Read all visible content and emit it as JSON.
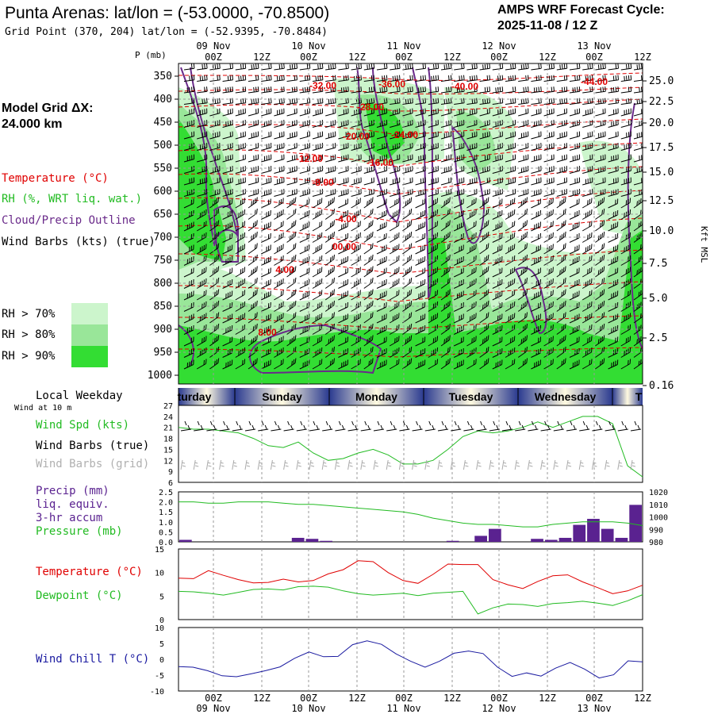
{
  "header": {
    "title": "Punta Arenas:  lat/lon = (-53.0000, -70.8500)",
    "subtitle": "Grid Point (370, 204) lat/lon = (-52.9395, -70.8484)",
    "cycle_line1": "AMPS WRF Forecast Cycle:",
    "cycle_line2": "2025-11-08 / 12  Z"
  },
  "left_panel": {
    "grid_label_1": "Model Grid ΔX:",
    "grid_label_2": " 24.000 km",
    "legend_temperature": "Temperature (°C)",
    "legend_rh": "RH (%, WRT liq. wat.)",
    "legend_cloud": "Cloud/Precip Outline",
    "legend_wind": "Wind Barbs (kts) (true)",
    "rh_gt70": "RH > 70%",
    "rh_gt80": "RH > 80%",
    "rh_gt90": "RH > 90%",
    "local_weekday": "Local Weekday",
    "wind_at_10m": "Wind at 10 m",
    "wind_spd": "Wind Spd (kts)",
    "wind_barbs_true": "Wind Barbs (true)",
    "wind_barbs_grid": "Wind Barbs (grid)",
    "precip": "Precip (mm)",
    "liq_equiv": "liq. equiv.",
    "accum": "3-hr accum",
    "pressure": "Pressure (mb)",
    "temperature2": "Temperature (°C)",
    "dewpoint": "Dewpoint (°C)",
    "wind_chill": "Wind Chill T (°C)"
  },
  "colors": {
    "temperature": "#e00000",
    "rh": "#22bb22",
    "cloud": "#6a2a8a",
    "wind": "#000000",
    "grid_barbs": "#aaaaaa",
    "precip": "#5a2290",
    "windchill": "#1a1aa0",
    "rh70": "#ccf5cc",
    "rh80": "#99e699",
    "rh90": "#33dd33"
  },
  "chart_data": [
    {
      "type": "heatmap",
      "name_hint": "time-pressure cross section",
      "ylabel": "P (mb)",
      "ylabel_right": "Kft MSL",
      "y_ticks": [
        350,
        400,
        450,
        500,
        550,
        600,
        650,
        700,
        750,
        800,
        850,
        900,
        950,
        1000
      ],
      "y_right_ticks": [
        "25.0",
        "22.5",
        "20.0",
        "17.5",
        "15.0",
        "12.5",
        "10.0",
        "7.5",
        "5.0",
        "2.5",
        "0.16"
      ],
      "x_ticks_top": [
        "00Z",
        "12Z",
        "00Z",
        "12Z",
        "00Z",
        "12Z",
        "00Z",
        "12Z",
        "00Z",
        "12Z"
      ],
      "x_dates_top": [
        "09 Nov",
        "10 Nov",
        "11 Nov",
        "12 Nov",
        "13 Nov"
      ],
      "temperature_labels": [
        "-32.00",
        "-36.00",
        "-40.00",
        "-44.00",
        "-28.00",
        "-20.00",
        "-24.00",
        "-12.00",
        "-16.00",
        "-8.00",
        "-4.00",
        "00.00",
        "4.00",
        "8.00"
      ]
    },
    {
      "type": "table",
      "weekdays": [
        "turday",
        "Sunday",
        "Monday",
        "Tuesday",
        "Wednesday",
        "T"
      ]
    },
    {
      "type": "line",
      "series": [
        {
          "name": "Wind Spd (kts)",
          "values": [
            21,
            20.5,
            20.5,
            20,
            19.5,
            18,
            16,
            15.5,
            17,
            14,
            12,
            12.5,
            14,
            15,
            13.5,
            11,
            11,
            12,
            15,
            18.5,
            20,
            19.5,
            20,
            21,
            22.5,
            21,
            22.5,
            24,
            24,
            22,
            10.5,
            7.5
          ]
        }
      ],
      "y_ticks": [
        6,
        9,
        12,
        15,
        18,
        21,
        24,
        27
      ],
      "ylim": [
        6,
        27
      ]
    },
    {
      "type": "bar",
      "series": [
        {
          "name": "Precip (mm)",
          "values": [
            0.1,
            0,
            0,
            0,
            0,
            0,
            0,
            0,
            0.2,
            0.15,
            0.05,
            0,
            0,
            0,
            0,
            0,
            0,
            0,
            0,
            0.05,
            0,
            0.3,
            0.65,
            0,
            0,
            0.15,
            0.1,
            0.2,
            0.85,
            1.15,
            0.65,
            0.2,
            1.85
          ]
        },
        {
          "name": "Pressure (mb)",
          "values": [
            1012,
            1012,
            1011,
            1011,
            1012,
            1012,
            1012,
            1011,
            1010,
            1010,
            1009,
            1008,
            1007,
            1006,
            1005,
            1004,
            1002,
            999,
            997,
            995,
            994,
            994,
            993,
            992,
            992,
            994,
            995,
            996,
            996,
            996,
            995,
            993
          ]
        }
      ],
      "y_ticks": [
        "0.0",
        "0.5",
        "1.0",
        "1.5",
        "2.0",
        "2.5"
      ],
      "y_right_ticks": [
        980,
        990,
        1000,
        1010,
        1020
      ],
      "ylabel_right": "(mb)",
      "ylim": [
        0,
        2.5
      ],
      "ylim_right": [
        980,
        1020
      ]
    },
    {
      "type": "line",
      "series": [
        {
          "name": "Temperature (°C)",
          "values": [
            8.8,
            8.7,
            10.4,
            9.4,
            8.5,
            7.8,
            7.9,
            8.6,
            8.0,
            8.3,
            9.7,
            10.6,
            12.5,
            12.3,
            10.0,
            8.3,
            7.7,
            9.6,
            11.8,
            11.7,
            11.7,
            8.5,
            7.4,
            6.6,
            8.1,
            9.3,
            9.5,
            8.0,
            6.8,
            5.5,
            6.1,
            7.3
          ]
        },
        {
          "name": "Dewpoint (°C)",
          "values": [
            6.0,
            5.9,
            5.6,
            5.2,
            5.8,
            6.4,
            6.5,
            6.3,
            7.0,
            7.1,
            6.9,
            6.1,
            5.5,
            5.2,
            5.4,
            5.6,
            5.1,
            5.6,
            5.8,
            6.0,
            1.2,
            2.5,
            3.3,
            3.2,
            2.8,
            3.4,
            3.6,
            3.9,
            3.5,
            3.0,
            4.0,
            5.3
          ]
        }
      ],
      "y_ticks": [
        0,
        5,
        10,
        15
      ],
      "ylim": [
        0,
        15
      ]
    },
    {
      "type": "line",
      "series": [
        {
          "name": "Wind Chill T (°C)",
          "values": [
            -2.3,
            -2.5,
            -3.6,
            -5.2,
            -5.5,
            -4.6,
            -3.6,
            -2.4,
            0.3,
            2.3,
            0.8,
            0.9,
            4.6,
            5.8,
            4.7,
            1.7,
            -0.6,
            -2.5,
            -0.6,
            1.9,
            2.6,
            1.8,
            -2.5,
            -5.4,
            -4.3,
            -5.3,
            -2.8,
            -1.0,
            -3.1,
            -5.9,
            -4.9,
            -0.5,
            -0.8
          ]
        }
      ],
      "y_ticks": [
        -10,
        -5,
        0,
        5,
        10
      ],
      "ylim": [
        -10,
        10
      ],
      "x_ticks_bottom": [
        "00Z",
        "12Z",
        "00Z",
        "12Z",
        "00Z",
        "12Z",
        "00Z",
        "12Z",
        "00Z",
        "12Z"
      ],
      "x_dates_bottom": [
        "09 Nov",
        "10 Nov",
        "11 Nov",
        "12 Nov",
        "13 Nov"
      ]
    }
  ]
}
